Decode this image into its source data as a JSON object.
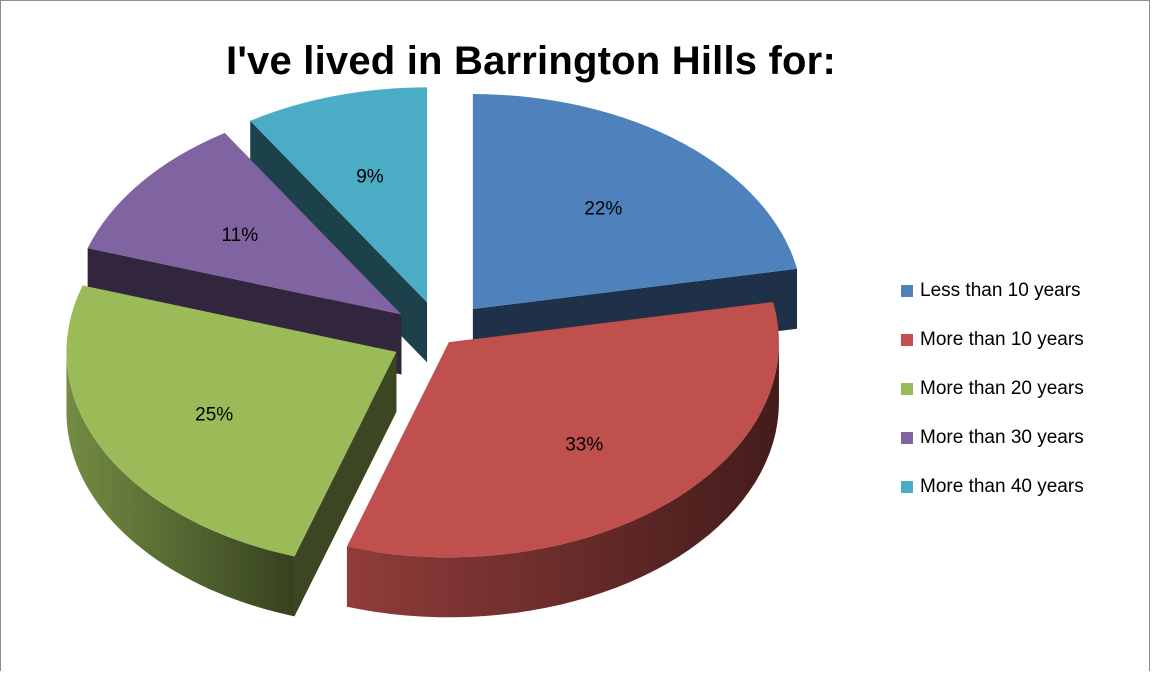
{
  "chart_data": {
    "type": "pie",
    "title": "I've lived in Barrington Hills for:",
    "categories": [
      "Less than 10 years",
      "More than 10 years",
      "More than 20 years",
      "More than 30 years",
      "More than 40 years"
    ],
    "values": [
      22,
      33,
      25,
      11,
      9
    ],
    "labels": [
      "22%",
      "33%",
      "25%",
      "11%",
      "9%"
    ],
    "colors": [
      "#4f81bd",
      "#c0504d",
      "#9bbb59",
      "#8064a2",
      "#4bacc6"
    ],
    "style": "3d-exploded",
    "legend_position": "right"
  }
}
